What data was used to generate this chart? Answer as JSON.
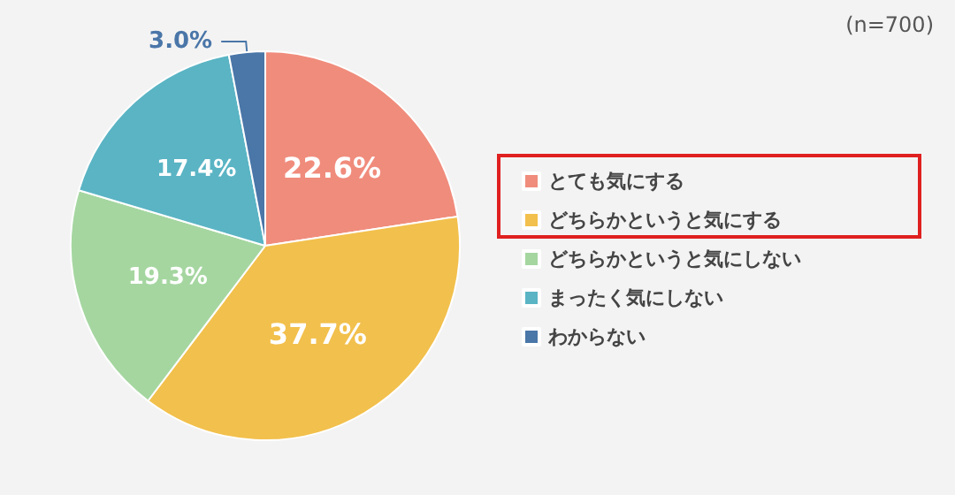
{
  "chart_data": {
    "type": "pie",
    "categories": [
      "とても気にする",
      "どちらかというと気にする",
      "どちらかというと気にしない",
      "まったく気にしない",
      "わからない"
    ],
    "values": [
      22.6,
      37.7,
      19.3,
      17.4,
      3.0
    ],
    "value_labels": [
      "22.6%",
      "37.7%",
      "19.3%",
      "17.4%",
      "3.0%"
    ],
    "colors": [
      "#f08c7c",
      "#f2c04c",
      "#a5d6a0",
      "#5ab4c4",
      "#4a76a8"
    ],
    "legend": "right",
    "annotations": [
      "(n=700)"
    ]
  }
}
